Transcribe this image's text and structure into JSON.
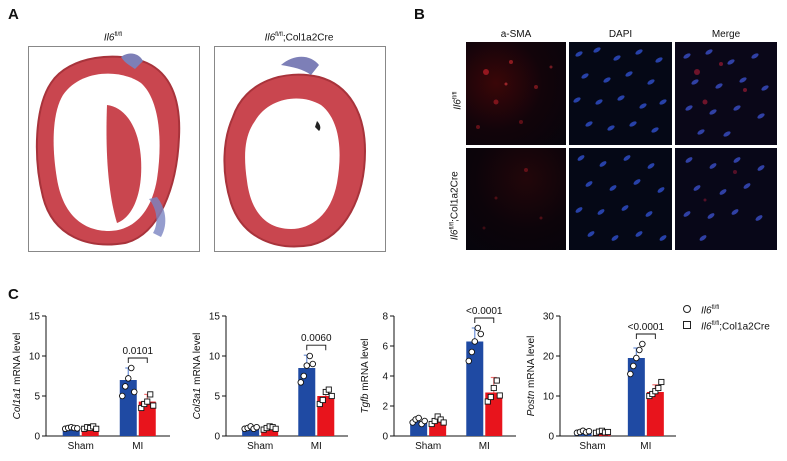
{
  "panels": {
    "a": "A",
    "b": "B",
    "c": "C"
  },
  "panel_a": {
    "left_title_gene": "Il6",
    "left_title_sup": "fl/fl",
    "left_title_suffix": "",
    "right_title_gene": "Il6",
    "right_title_sup": "fl/fl",
    "right_title_suffix": ";Col1a2Cre"
  },
  "panel_b": {
    "columns": [
      "a-SMA",
      "DAPI",
      "Merge"
    ],
    "row1_gene": "Il6",
    "row1_sup": "fl/fl",
    "row1_suffix": "",
    "row2_gene": "Il6",
    "row2_sup": "fl/fl",
    "row2_suffix": ";Col1a2Cre"
  },
  "legend": {
    "item1_gene": "Il6",
    "item1_sup": "fl/fl",
    "item1_suffix": "",
    "item2_gene": "Il6",
    "item2_sup": "fl/fl",
    "item2_suffix": ";Col1a2Cre"
  },
  "colors": {
    "control": "#1f4aa3",
    "knockout": "#e8141c",
    "blue_sd": "#6b8fd6",
    "red_sd": "#f07070"
  },
  "chart_data": [
    {
      "type": "bar",
      "ylabel_gene": "Col1a1",
      "ylabel_suffix": " mRNA level",
      "categories": [
        "Sham",
        "MI"
      ],
      "series": [
        {
          "name": "Il6fl/fl",
          "values": [
            1.0,
            7.0
          ],
          "sd": [
            0.1,
            1.5
          ],
          "points": [
            [
              0.9,
              1.0,
              1.1,
              1.0,
              0.95
            ],
            [
              5.0,
              6.2,
              7.2,
              8.5,
              5.5
            ]
          ]
        },
        {
          "name": "Il6fl/fl;Col1a2Cre",
          "values": [
            1.0,
            4.3
          ],
          "sd": [
            0.15,
            0.9
          ],
          "points": [
            [
              0.9,
              1.1,
              1.0,
              1.2,
              0.9
            ],
            [
              3.5,
              4.0,
              4.3,
              5.2,
              3.8
            ]
          ]
        }
      ],
      "ylim": [
        0,
        15
      ],
      "yticks": [
        0,
        5,
        10,
        15
      ],
      "pvalue": "0.0101"
    },
    {
      "type": "bar",
      "ylabel_gene": "Col3a1",
      "ylabel_suffix": " mRNA level",
      "categories": [
        "Sham",
        "MI"
      ],
      "series": [
        {
          "name": "Il6fl/fl",
          "values": [
            1.0,
            8.5
          ],
          "sd": [
            0.15,
            1.6
          ],
          "points": [
            [
              0.9,
              1.0,
              1.2,
              0.9,
              1.1
            ],
            [
              6.7,
              7.5,
              8.8,
              10.0,
              9.0
            ]
          ]
        },
        {
          "name": "Il6fl/fl;Col1a2Cre",
          "values": [
            1.0,
            5.0
          ],
          "sd": [
            0.2,
            0.8
          ],
          "points": [
            [
              0.8,
              1.0,
              1.2,
              1.1,
              0.9
            ],
            [
              4.0,
              4.5,
              5.5,
              5.8,
              5.0
            ]
          ]
        }
      ],
      "ylim": [
        0,
        15
      ],
      "yticks": [
        0,
        5,
        10,
        15
      ],
      "pvalue": "0.0060"
    },
    {
      "type": "bar",
      "ylabel_gene": "Tgfb",
      "ylabel_suffix": " mRNA level",
      "categories": [
        "Sham",
        "MI"
      ],
      "series": [
        {
          "name": "Il6fl/fl",
          "values": [
            1.0,
            6.3
          ],
          "sd": [
            0.2,
            0.9
          ],
          "points": [
            [
              0.9,
              1.1,
              1.2,
              0.8,
              1.0
            ],
            [
              5.0,
              5.6,
              6.3,
              7.2,
              6.8
            ]
          ]
        },
        {
          "name": "Il6fl/fl;Col1a2Cre",
          "values": [
            1.0,
            2.9
          ],
          "sd": [
            0.25,
            1.0
          ],
          "points": [
            [
              0.8,
              1.0,
              1.3,
              1.1,
              0.9
            ],
            [
              2.3,
              2.6,
              3.2,
              3.7,
              2.7
            ]
          ]
        }
      ],
      "ylim": [
        0,
        8
      ],
      "yticks": [
        0,
        2,
        4,
        6,
        8
      ],
      "pvalue": "<0.0001"
    },
    {
      "type": "bar",
      "ylabel_gene": "Postn",
      "ylabel_suffix": " mRNA level",
      "categories": [
        "Sham",
        "MI"
      ],
      "series": [
        {
          "name": "Il6fl/fl",
          "values": [
            1.0,
            19.5
          ],
          "sd": [
            0.3,
            2.5
          ],
          "points": [
            [
              0.8,
              1.0,
              1.3,
              0.9,
              1.2
            ],
            [
              15.5,
              17.5,
              19.5,
              21.5,
              23.0
            ]
          ]
        },
        {
          "name": "Il6fl/fl;Col1a2Cre",
          "values": [
            1.0,
            11.0
          ],
          "sd": [
            0.3,
            1.8
          ],
          "points": [
            [
              0.8,
              1.1,
              1.3,
              0.9,
              1.0
            ],
            [
              10.0,
              10.5,
              11.2,
              12.0,
              13.5
            ]
          ]
        }
      ],
      "ylim": [
        0,
        30
      ],
      "yticks": [
        0,
        10,
        20,
        30
      ],
      "pvalue": "<0.0001"
    }
  ]
}
